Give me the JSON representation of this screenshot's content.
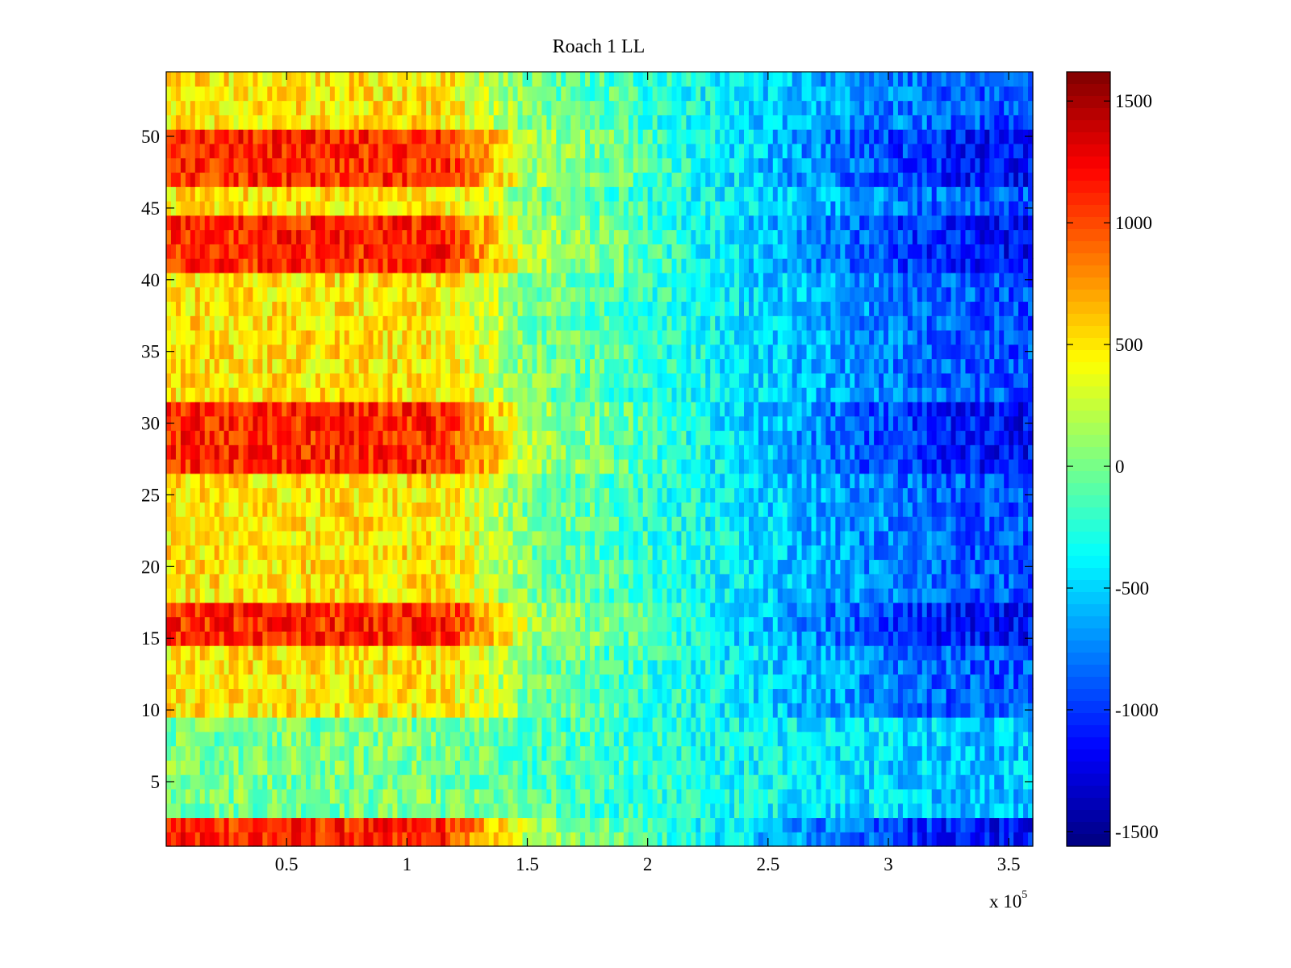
{
  "chart_data": {
    "type": "heatmap",
    "title": "Roach 1 LL",
    "xlabel": "",
    "ylabel": "",
    "x_range": [
      0,
      360000
    ],
    "y_range": [
      0.5,
      54.5
    ],
    "rows": 54,
    "x_ticks": [
      50000,
      100000,
      150000,
      200000,
      250000,
      300000,
      350000
    ],
    "x_tick_labels": [
      "0.5",
      "1",
      "1.5",
      "2",
      "2.5",
      "3",
      "3.5"
    ],
    "x_multiplier_label": "x 10",
    "x_multiplier_exponent": "5",
    "y_ticks": [
      5,
      10,
      15,
      20,
      25,
      30,
      35,
      40,
      45,
      50
    ],
    "y_tick_labels": [
      "5",
      "10",
      "15",
      "20",
      "25",
      "30",
      "35",
      "40",
      "45",
      "50"
    ],
    "colorbar": {
      "colormap": "jet",
      "range": [
        -1560,
        1620
      ],
      "ticks": [
        1500,
        1000,
        500,
        0,
        -500,
        -1000,
        -1500
      ],
      "tick_labels": [
        "1500",
        "1000",
        "500",
        "0",
        "-500",
        "-1000",
        "-1500"
      ]
    },
    "grid": false,
    "row_profiles": {
      "description_values": "approximate mean value per row (1..54) in the first third of x-range",
      "peak_rows": [
        [
          1,
          2
        ],
        [
          15,
          17
        ],
        [
          27,
          31
        ],
        [
          41,
          44
        ],
        [
          47,
          50
        ]
      ],
      "left_value_peak": 1100,
      "left_value_base": 500,
      "right_value": -900,
      "low_rows": [
        [
          3,
          9
        ]
      ]
    }
  }
}
